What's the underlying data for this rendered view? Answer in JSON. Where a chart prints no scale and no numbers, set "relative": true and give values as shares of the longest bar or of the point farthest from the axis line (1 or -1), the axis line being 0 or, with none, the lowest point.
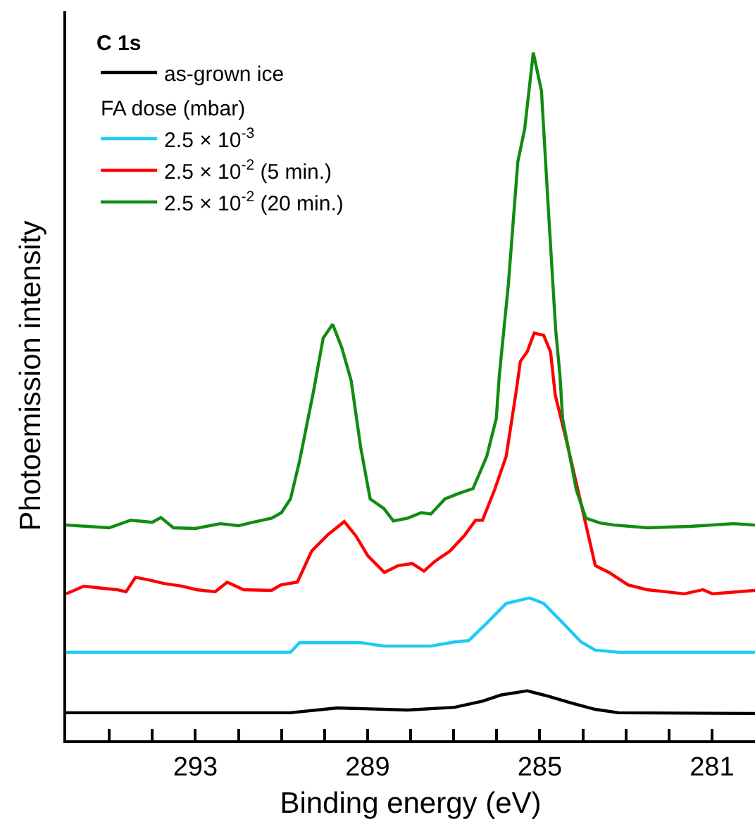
{
  "chart_data": {
    "type": "line",
    "relative": true,
    "xlabel": "Binding energy (eV)",
    "ylabel": "Photoemission intensity",
    "legend_title": "C 1s",
    "legend": "top left",
    "annotations": [
      "FA dose (mbar)"
    ],
    "xlim": [
      296,
      280
    ],
    "xticks": [
      {
        "value": 295,
        "label": null
      },
      {
        "value": 294,
        "label": null
      },
      293,
      {
        "value": 292,
        "label": null
      },
      {
        "value": 291,
        "label": null
      },
      {
        "value": 290,
        "label": null
      },
      289,
      {
        "value": 288,
        "label": null
      },
      {
        "value": 287,
        "label": null
      },
      {
        "value": 286,
        "label": null
      },
      285,
      {
        "value": 284,
        "label": null
      },
      {
        "value": 283,
        "label": null
      },
      {
        "value": 282,
        "label": null
      },
      281
    ],
    "series": [
      {
        "name": "as-grown ice",
        "color": "#000000",
        "x": [
          296,
          293,
          290.8,
          289.7,
          288.07,
          286.98,
          286.33,
          285.89,
          285.29,
          284.8,
          284.26,
          283.71,
          283.17,
          280
        ],
        "values": [
          0.04,
          0.04,
          0.04,
          0.047,
          0.044,
          0.048,
          0.057,
          0.066,
          0.072,
          0.064,
          0.054,
          0.045,
          0.04,
          0.039
        ]
      },
      {
        "name": "2.5 × 10$^{-3}$",
        "color": "#1ecbf5",
        "x": [
          296,
          292.97,
          290.79,
          290.58,
          289.16,
          288.61,
          287.53,
          286.98,
          286.65,
          286.22,
          285.78,
          285.24,
          284.91,
          284.47,
          284.04,
          283.71,
          283.17,
          280
        ],
        "values": [
          0.128,
          0.128,
          0.128,
          0.142,
          0.142,
          0.137,
          0.137,
          0.143,
          0.145,
          0.171,
          0.199,
          0.207,
          0.199,
          0.171,
          0.143,
          0.131,
          0.128,
          0.128
        ]
      },
      {
        "name": "2.5 × 10$^{-2}$ (5 min.)",
        "color": "#ff0000",
        "x": [
          296,
          295.59,
          295.15,
          294.82,
          294.61,
          294.39,
          294.06,
          293.73,
          293.3,
          292.97,
          292.54,
          292.26,
          291.88,
          291.23,
          291.01,
          290.63,
          290.3,
          289.92,
          289.54,
          289.27,
          288.99,
          288.61,
          288.29,
          287.96,
          287.69,
          287.42,
          287.09,
          286.76,
          286.49,
          286.33,
          286.05,
          285.78,
          285.56,
          285.45,
          285.29,
          285.13,
          284.91,
          284.75,
          284.64,
          284.37,
          284.04,
          283.71,
          283.39,
          282.95,
          282.51,
          282.08,
          281.64,
          281.21,
          280.99,
          280
        ],
        "values": [
          0.213,
          0.224,
          0.221,
          0.219,
          0.216,
          0.237,
          0.233,
          0.228,
          0.224,
          0.219,
          0.216,
          0.23,
          0.219,
          0.218,
          0.226,
          0.23,
          0.275,
          0.299,
          0.318,
          0.297,
          0.268,
          0.244,
          0.254,
          0.257,
          0.246,
          0.261,
          0.275,
          0.297,
          0.32,
          0.32,
          0.364,
          0.413,
          0.502,
          0.551,
          0.565,
          0.592,
          0.589,
          0.565,
          0.502,
          0.433,
          0.344,
          0.254,
          0.244,
          0.226,
          0.219,
          0.216,
          0.213,
          0.219,
          0.213,
          0.218
        ]
      },
      {
        "name": "2.5 × 10$^{-2}$ (20 min.)",
        "color": "#118c11",
        "x": [
          296,
          295,
          294.5,
          294,
          293.8,
          293.51,
          293,
          292.42,
          292,
          291.66,
          291.23,
          291,
          290.79,
          290.58,
          290.25,
          290.03,
          289.81,
          289.6,
          289.38,
          289.16,
          288.94,
          288.62,
          288.4,
          288.07,
          287.75,
          287.53,
          287.2,
          286.88,
          286.55,
          286.23,
          286.01,
          285.94,
          285.73,
          285.51,
          285.35,
          285.15,
          284.96,
          284.8,
          284.63,
          284.53,
          284.47,
          284.15,
          283.93,
          283.6,
          283.27,
          282.5,
          281.5,
          280.5,
          280
        ],
        "values": [
          0.313,
          0.309,
          0.32,
          0.317,
          0.324,
          0.309,
          0.308,
          0.315,
          0.312,
          0.317,
          0.323,
          0.331,
          0.351,
          0.406,
          0.509,
          0.585,
          0.605,
          0.571,
          0.523,
          0.426,
          0.351,
          0.337,
          0.319,
          0.323,
          0.331,
          0.329,
          0.351,
          0.359,
          0.366,
          0.413,
          0.468,
          0.53,
          0.662,
          0.841,
          0.889,
          1,
          0.944,
          0.772,
          0.597,
          0.53,
          0.468,
          0.364,
          0.323,
          0.316,
          0.313,
          0.309,
          0.311,
          0.315,
          0.313
        ]
      }
    ]
  }
}
